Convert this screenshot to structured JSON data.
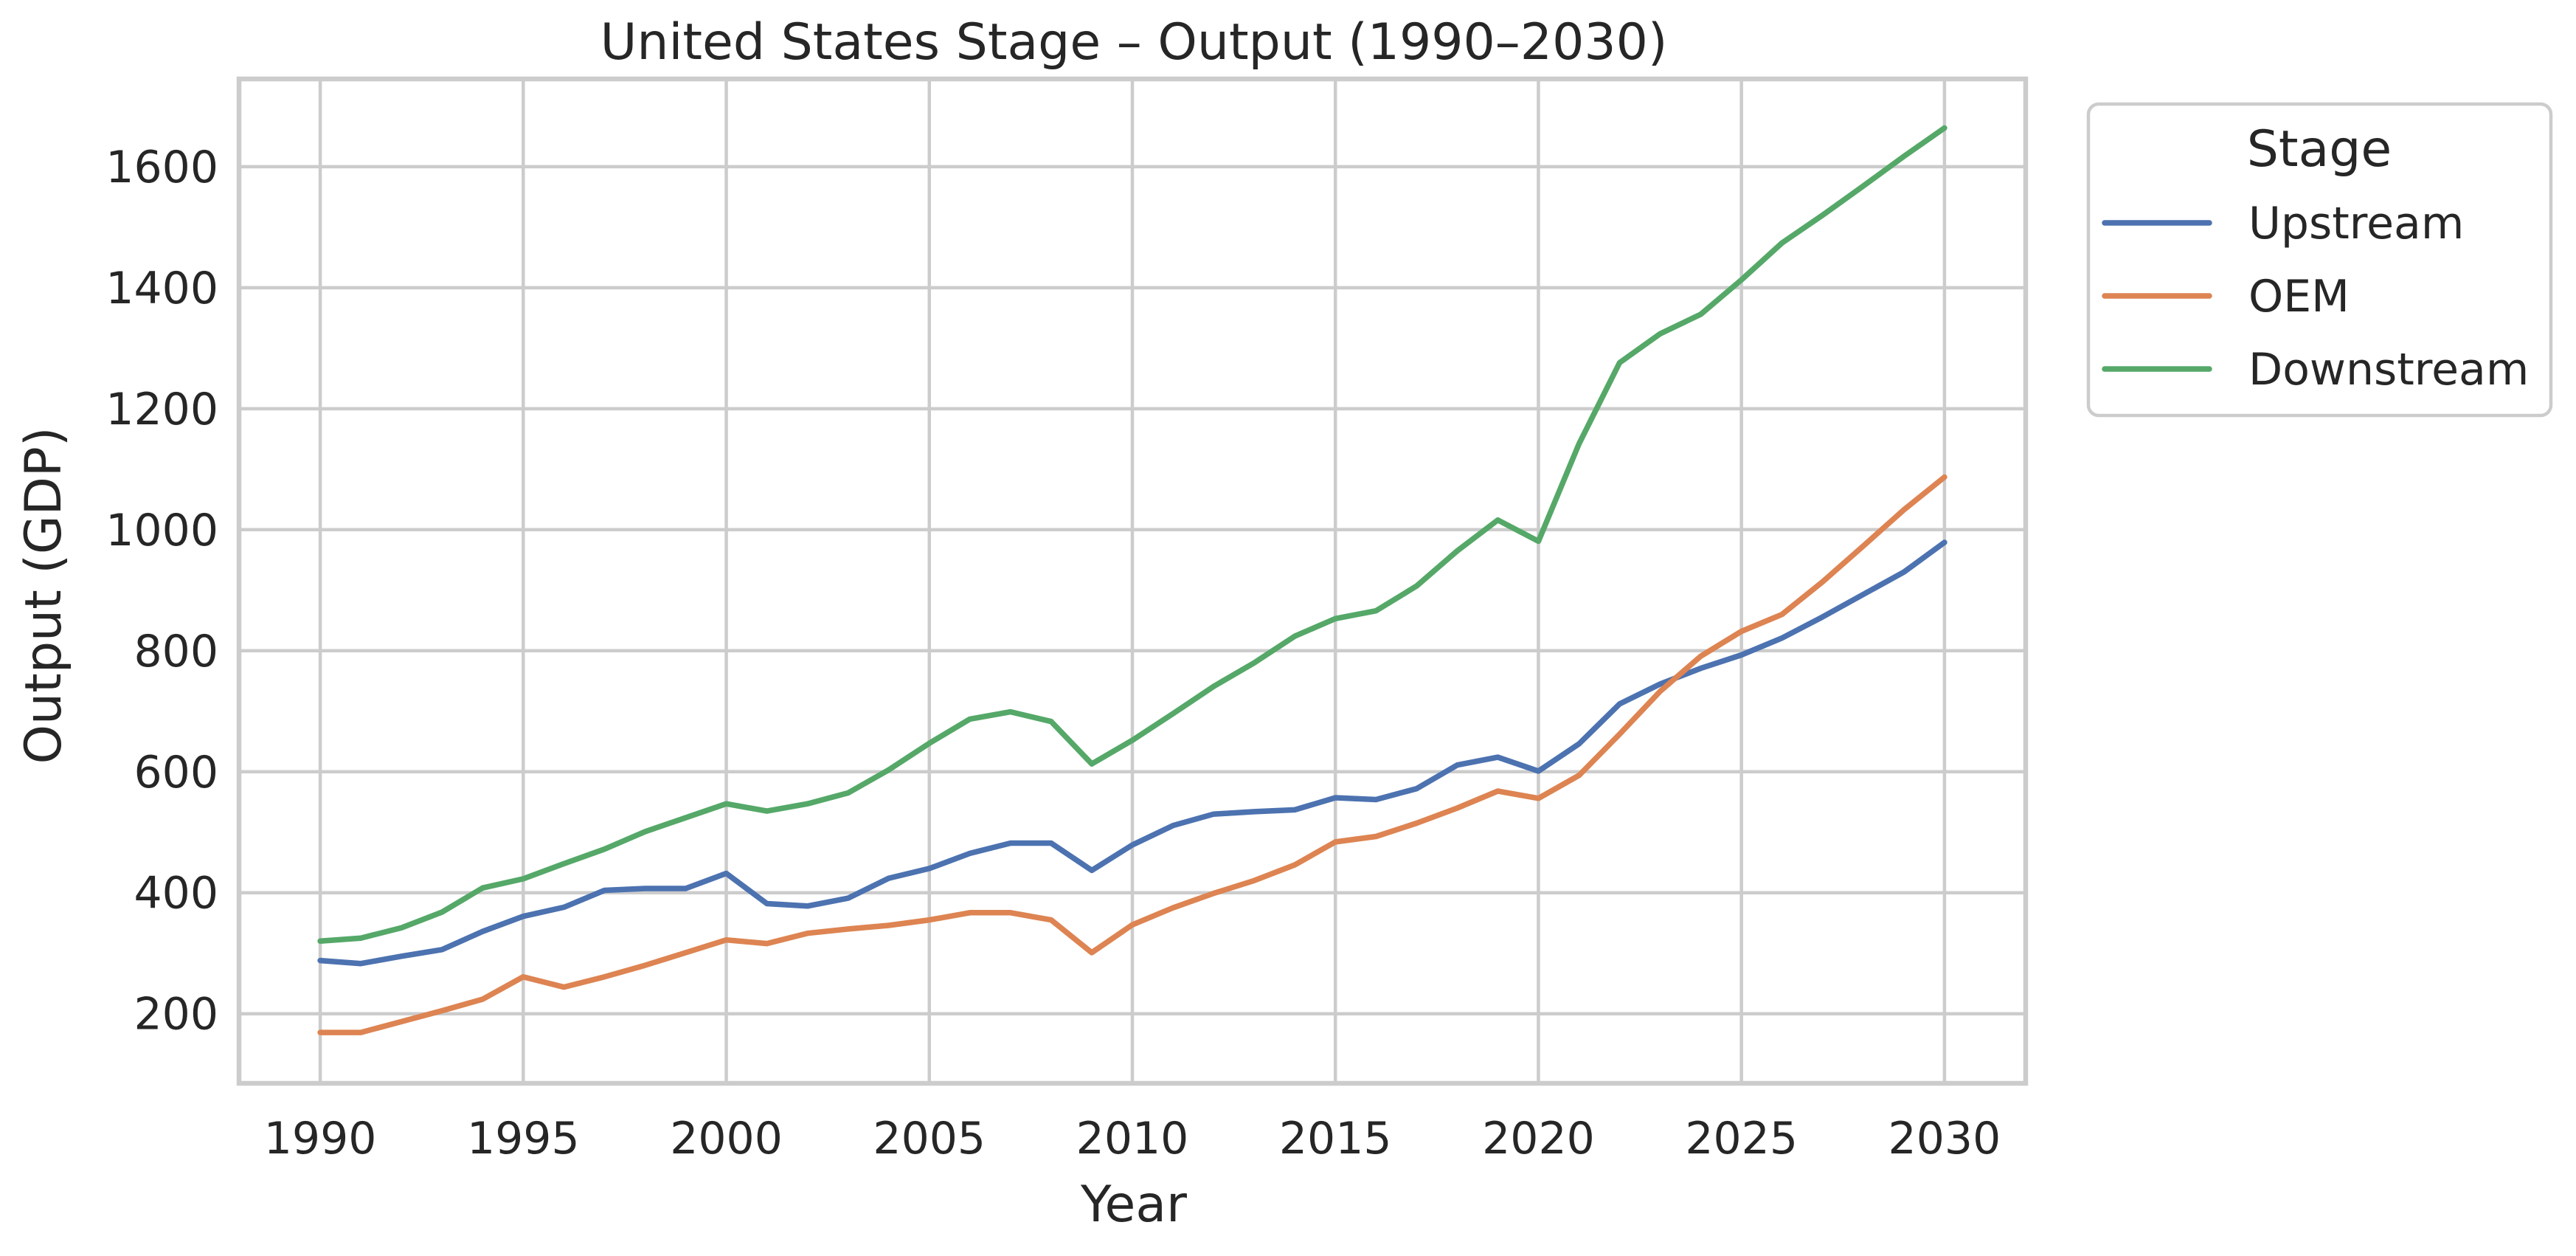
{
  "chart_data": {
    "type": "line",
    "title": "United States Stage – Output (1990–2030)",
    "xlabel": "Year",
    "ylabel": "Output (GDP)",
    "xlim": [
      1988,
      2032
    ],
    "ylim": [
      85,
      1745
    ],
    "xticks": [
      1990,
      1995,
      2000,
      2005,
      2010,
      2015,
      2020,
      2025,
      2030
    ],
    "yticks": [
      200,
      400,
      600,
      800,
      1000,
      1200,
      1400,
      1600
    ],
    "grid": true,
    "legend": {
      "title": "Stage",
      "placement": "outside-top-right"
    },
    "x": [
      1990,
      1991,
      1992,
      1993,
      1994,
      1995,
      1996,
      1997,
      1998,
      1999,
      2000,
      2001,
      2002,
      2003,
      2004,
      2005,
      2006,
      2007,
      2008,
      2009,
      2010,
      2011,
      2012,
      2013,
      2014,
      2015,
      2016,
      2017,
      2018,
      2019,
      2020,
      2021,
      2022,
      2023,
      2024,
      2025,
      2026,
      2027,
      2028,
      2029,
      2030
    ],
    "series": [
      {
        "name": "Upstream",
        "color": "#4c72b0",
        "values": [
          288,
          283,
          295,
          306,
          336,
          361,
          376,
          404,
          407,
          407,
          432,
          382,
          378,
          391,
          424,
          440,
          465,
          482,
          482,
          437,
          479,
          511,
          530,
          534,
          537,
          557,
          554,
          572,
          611,
          624,
          601,
          646,
          712,
          745,
          771,
          793,
          821,
          856,
          893,
          930,
          979
        ]
      },
      {
        "name": "OEM",
        "color": "#dd8452",
        "values": [
          169,
          169,
          187,
          205,
          224,
          261,
          244,
          261,
          280,
          301,
          322,
          316,
          333,
          340,
          346,
          355,
          367,
          367,
          355,
          301,
          347,
          375,
          399,
          420,
          446,
          484,
          493,
          515,
          540,
          568,
          556,
          594,
          662,
          733,
          791,
          832,
          860,
          914,
          973,
          1033,
          1087
        ]
      },
      {
        "name": "Downstream",
        "color": "#55a868",
        "values": [
          320,
          325,
          342,
          368,
          408,
          423,
          448,
          472,
          501,
          524,
          547,
          535,
          547,
          565,
          603,
          647,
          687,
          699,
          683,
          613,
          652,
          696,
          741,
          780,
          824,
          853,
          866,
          907,
          965,
          1016,
          981,
          1142,
          1276,
          1324,
          1356,
          1413,
          1474,
          1520,
          1568,
          1617,
          1664
        ]
      }
    ]
  }
}
